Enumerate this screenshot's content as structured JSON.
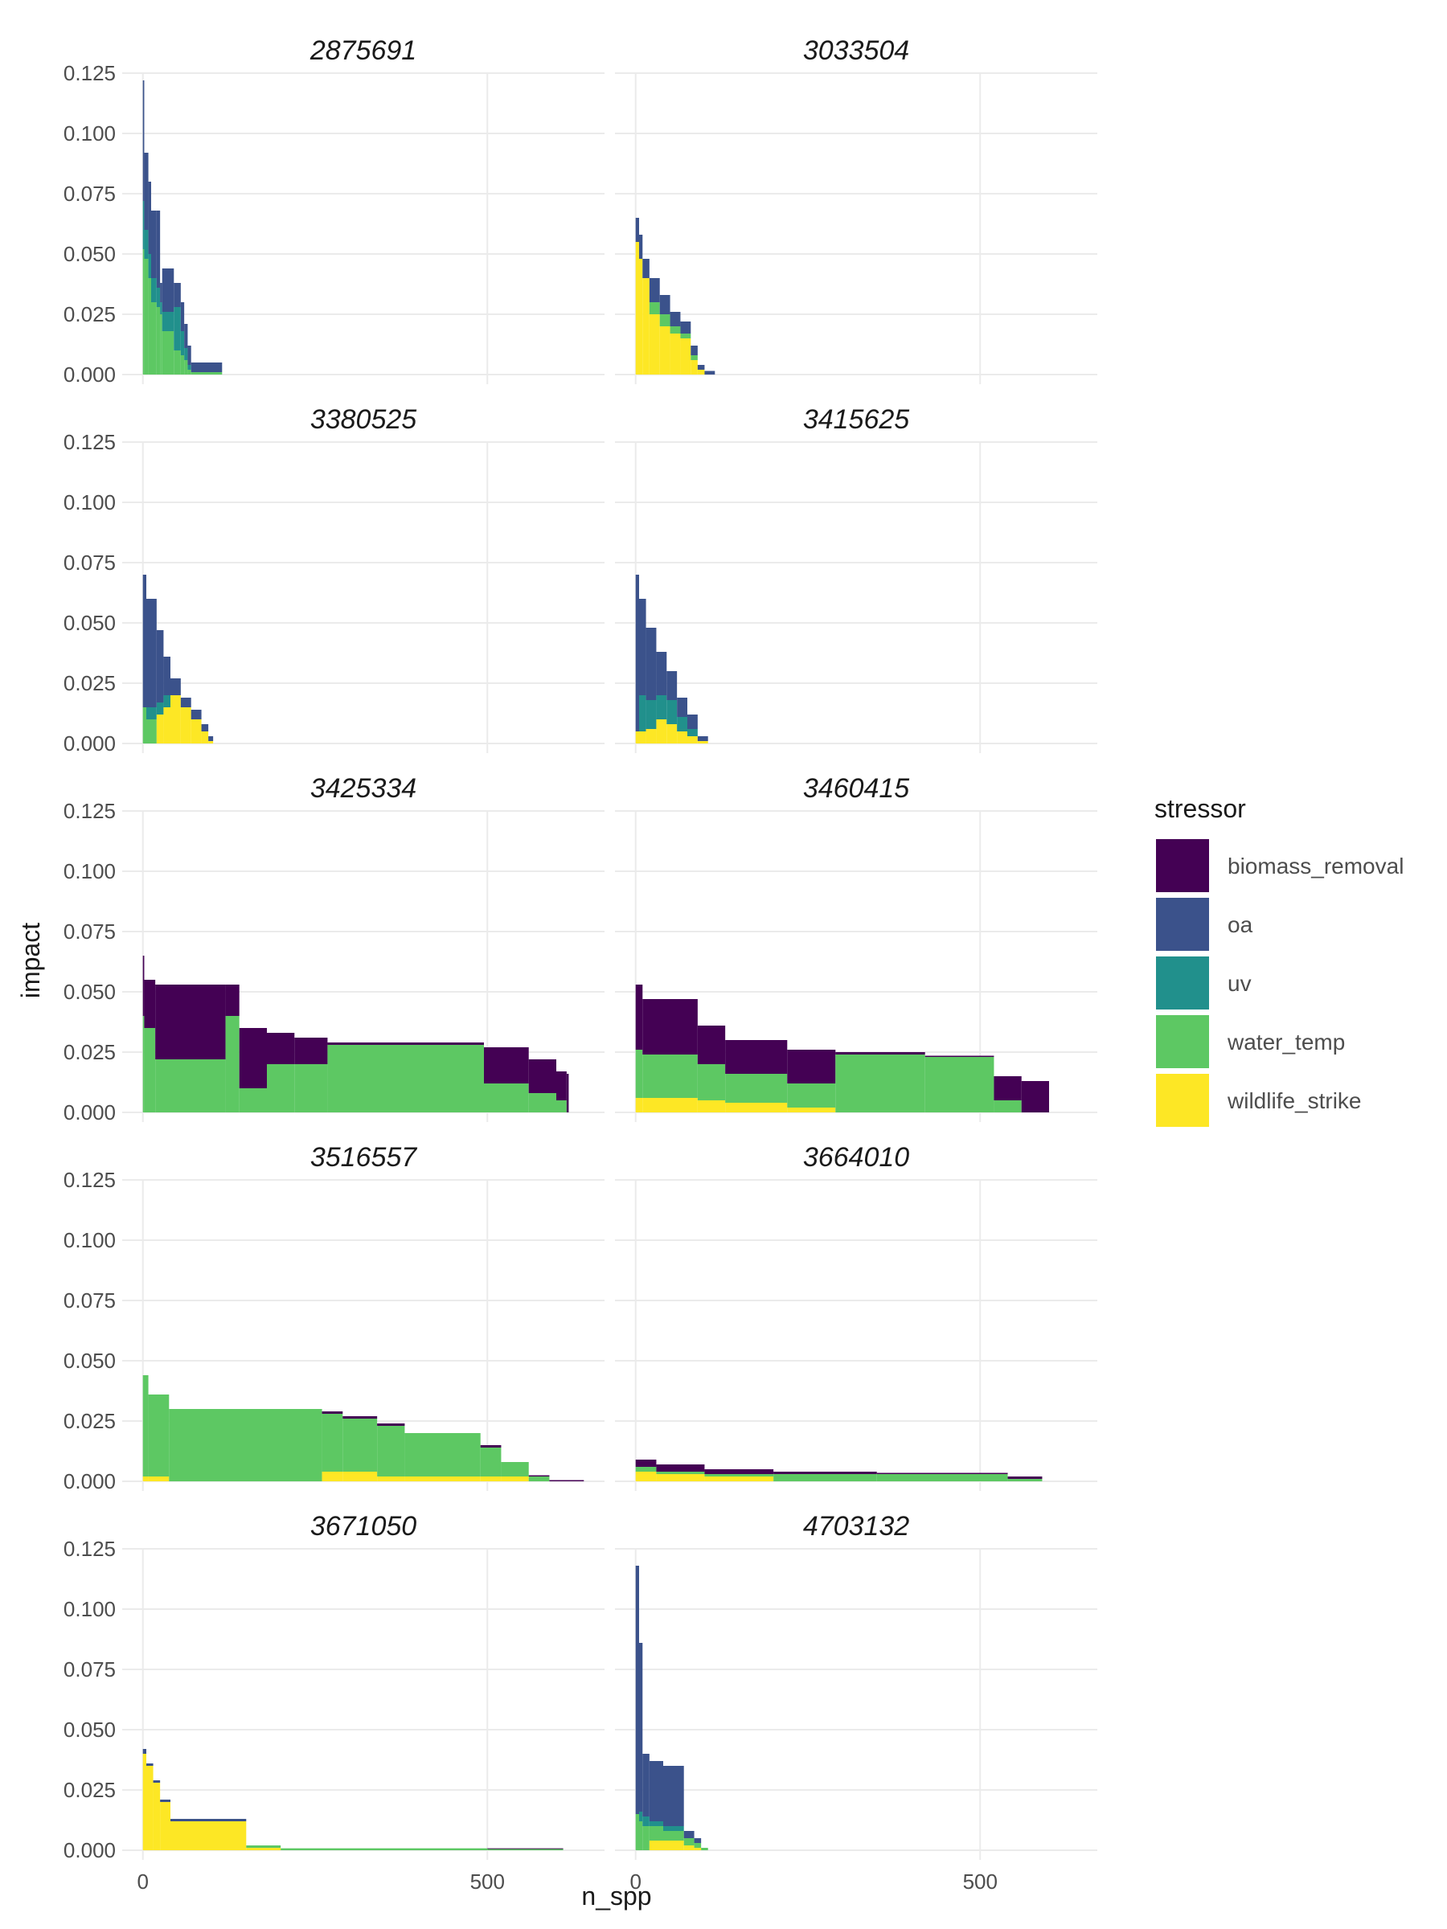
{
  "chart_data": {
    "type": "area",
    "title": "",
    "xlabel": "n_spp",
    "ylabel": "impact",
    "xlim": [
      -30,
      670
    ],
    "ylim": [
      0,
      0.125
    ],
    "x_ticks": [
      0,
      500
    ],
    "x_tick_labels": [
      "0",
      "500"
    ],
    "y_ticks": [
      0,
      0.025,
      0.05,
      0.075,
      0.1,
      0.125
    ],
    "y_tick_labels": [
      "0.000",
      "0.025",
      "0.050",
      "0.075",
      "0.100",
      "0.125"
    ],
    "grid": true,
    "legend": {
      "title": "stressor",
      "placement": "right",
      "entries": [
        "biomass_removal",
        "oa",
        "uv",
        "water_temp",
        "wildlife_strike"
      ]
    },
    "colors": {
      "biomass_removal": "#440154",
      "oa": "#3B528B",
      "uv": "#21908C",
      "water_temp": "#5DC863",
      "wildlife_strike": "#FDE725",
      "grid": "#EBEBEB",
      "axis_text": "#4D4D4D",
      "title_text": "#1A1A1A"
    },
    "panels": [
      {
        "title": "2875691",
        "segments": [
          {
            "x0": 0,
            "x1": 2,
            "layers": {
              "water_temp": 0.052,
              "uv": 0.02,
              "oa": 0.05
            }
          },
          {
            "x0": 2,
            "x1": 8,
            "layers": {
              "water_temp": 0.048,
              "uv": 0.012,
              "oa": 0.032
            }
          },
          {
            "x0": 8,
            "x1": 12,
            "layers": {
              "water_temp": 0.04,
              "uv": 0.01,
              "oa": 0.03
            }
          },
          {
            "x0": 12,
            "x1": 20,
            "layers": {
              "water_temp": 0.03,
              "uv": 0.01,
              "oa": 0.028
            }
          },
          {
            "x0": 20,
            "x1": 25,
            "layers": {
              "water_temp": 0.028,
              "uv": 0.008,
              "oa": 0.032
            }
          },
          {
            "x0": 25,
            "x1": 28,
            "layers": {
              "water_temp": 0.025,
              "uv": 0.005,
              "oa": 0.008
            }
          },
          {
            "x0": 28,
            "x1": 45,
            "layers": {
              "water_temp": 0.018,
              "uv": 0.008,
              "oa": 0.018
            }
          },
          {
            "x0": 45,
            "x1": 55,
            "layers": {
              "water_temp": 0.01,
              "uv": 0.018,
              "oa": 0.01
            }
          },
          {
            "x0": 55,
            "x1": 60,
            "layers": {
              "water_temp": 0.008,
              "uv": 0.01,
              "oa": 0.012
            }
          },
          {
            "x0": 60,
            "x1": 65,
            "layers": {
              "water_temp": 0.006,
              "uv": 0.005,
              "oa": 0.01
            }
          },
          {
            "x0": 65,
            "x1": 70,
            "layers": {
              "water_temp": 0.002,
              "uv": 0.002,
              "oa": 0.008
            }
          },
          {
            "x0": 70,
            "x1": 115,
            "layers": {
              "water_temp": 0.001,
              "oa": 0.004
            }
          }
        ]
      },
      {
        "title": "3033504",
        "segments": [
          {
            "x0": 0,
            "x1": 5,
            "layers": {
              "wildlife_strike": 0.055,
              "oa": 0.01
            }
          },
          {
            "x0": 5,
            "x1": 10,
            "layers": {
              "wildlife_strike": 0.048,
              "oa": 0.01
            }
          },
          {
            "x0": 10,
            "x1": 20,
            "layers": {
              "wildlife_strike": 0.04,
              "oa": 0.008
            }
          },
          {
            "x0": 20,
            "x1": 35,
            "layers": {
              "wildlife_strike": 0.025,
              "water_temp": 0.005,
              "oa": 0.01
            }
          },
          {
            "x0": 35,
            "x1": 50,
            "layers": {
              "wildlife_strike": 0.02,
              "water_temp": 0.005,
              "oa": 0.008
            }
          },
          {
            "x0": 50,
            "x1": 65,
            "layers": {
              "wildlife_strike": 0.017,
              "water_temp": 0.003,
              "oa": 0.006
            }
          },
          {
            "x0": 65,
            "x1": 80,
            "layers": {
              "wildlife_strike": 0.015,
              "water_temp": 0.002,
              "oa": 0.005
            }
          },
          {
            "x0": 80,
            "x1": 90,
            "layers": {
              "wildlife_strike": 0.006,
              "water_temp": 0.002,
              "oa": 0.004
            }
          },
          {
            "x0": 90,
            "x1": 100,
            "layers": {
              "wildlife_strike": 0.002,
              "oa": 0.002
            }
          },
          {
            "x0": 100,
            "x1": 115,
            "layers": {
              "oa": 0.0015
            }
          }
        ]
      },
      {
        "title": "3380525",
        "segments": [
          {
            "x0": 0,
            "x1": 5,
            "layers": {
              "water_temp": 0.015,
              "oa": 0.055
            }
          },
          {
            "x0": 5,
            "x1": 20,
            "layers": {
              "water_temp": 0.01,
              "uv": 0.005,
              "oa": 0.045
            }
          },
          {
            "x0": 20,
            "x1": 30,
            "layers": {
              "wildlife_strike": 0.012,
              "uv": 0.005,
              "oa": 0.03
            }
          },
          {
            "x0": 30,
            "x1": 40,
            "layers": {
              "wildlife_strike": 0.015,
              "uv": 0.005,
              "oa": 0.016
            }
          },
          {
            "x0": 40,
            "x1": 55,
            "layers": {
              "wildlife_strike": 0.02,
              "oa": 0.007
            }
          },
          {
            "x0": 55,
            "x1": 70,
            "layers": {
              "wildlife_strike": 0.015,
              "oa": 0.004
            }
          },
          {
            "x0": 70,
            "x1": 85,
            "layers": {
              "wildlife_strike": 0.01,
              "oa": 0.004
            }
          },
          {
            "x0": 85,
            "x1": 95,
            "layers": {
              "wildlife_strike": 0.005,
              "oa": 0.003
            }
          },
          {
            "x0": 95,
            "x1": 102,
            "layers": {
              "wildlife_strike": 0.001,
              "oa": 0.002
            }
          }
        ]
      },
      {
        "title": "3415625",
        "segments": [
          {
            "x0": 0,
            "x1": 5,
            "layers": {
              "wildlife_strike": 0.005,
              "oa": 0.065
            }
          },
          {
            "x0": 5,
            "x1": 15,
            "layers": {
              "wildlife_strike": 0.005,
              "uv": 0.015,
              "oa": 0.04
            }
          },
          {
            "x0": 15,
            "x1": 30,
            "layers": {
              "wildlife_strike": 0.006,
              "uv": 0.012,
              "oa": 0.03
            }
          },
          {
            "x0": 30,
            "x1": 45,
            "layers": {
              "wildlife_strike": 0.01,
              "uv": 0.01,
              "oa": 0.018
            }
          },
          {
            "x0": 45,
            "x1": 60,
            "layers": {
              "wildlife_strike": 0.008,
              "uv": 0.01,
              "oa": 0.012
            }
          },
          {
            "x0": 60,
            "x1": 75,
            "layers": {
              "wildlife_strike": 0.005,
              "uv": 0.006,
              "oa": 0.008
            }
          },
          {
            "x0": 75,
            "x1": 90,
            "layers": {
              "wildlife_strike": 0.003,
              "uv": 0.003,
              "oa": 0.006
            }
          },
          {
            "x0": 90,
            "x1": 105,
            "layers": {
              "wildlife_strike": 0.001,
              "oa": 0.002
            }
          }
        ]
      },
      {
        "title": "3425334",
        "segments": [
          {
            "x0": 0,
            "x1": 2,
            "layers": {
              "water_temp": 0.04,
              "biomass_removal": 0.025
            }
          },
          {
            "x0": 2,
            "x1": 18,
            "layers": {
              "water_temp": 0.035,
              "biomass_removal": 0.02
            }
          },
          {
            "x0": 18,
            "x1": 120,
            "layers": {
              "water_temp": 0.022,
              "biomass_removal": 0.031
            }
          },
          {
            "x0": 120,
            "x1": 140,
            "layers": {
              "water_temp": 0.04,
              "biomass_removal": 0.013
            }
          },
          {
            "x0": 140,
            "x1": 180,
            "layers": {
              "water_temp": 0.01,
              "biomass_removal": 0.025
            }
          },
          {
            "x0": 180,
            "x1": 220,
            "layers": {
              "water_temp": 0.02,
              "biomass_removal": 0.013
            }
          },
          {
            "x0": 220,
            "x1": 268,
            "layers": {
              "water_temp": 0.02,
              "biomass_removal": 0.011
            }
          },
          {
            "x0": 268,
            "x1": 495,
            "layers": {
              "water_temp": 0.028,
              "biomass_removal": 0.001
            }
          },
          {
            "x0": 495,
            "x1": 560,
            "layers": {
              "water_temp": 0.012,
              "biomass_removal": 0.015
            }
          },
          {
            "x0": 560,
            "x1": 600,
            "layers": {
              "water_temp": 0.008,
              "biomass_removal": 0.014
            }
          },
          {
            "x0": 600,
            "x1": 615,
            "layers": {
              "water_temp": 0.005,
              "biomass_removal": 0.012
            }
          },
          {
            "x0": 615,
            "x1": 618,
            "layers": {
              "biomass_removal": 0.016
            }
          }
        ]
      },
      {
        "title": "3460415",
        "segments": [
          {
            "x0": 0,
            "x1": 10,
            "layers": {
              "wildlife_strike": 0.006,
              "water_temp": 0.02,
              "biomass_removal": 0.027
            }
          },
          {
            "x0": 10,
            "x1": 90,
            "layers": {
              "wildlife_strike": 0.006,
              "water_temp": 0.018,
              "biomass_removal": 0.023
            }
          },
          {
            "x0": 90,
            "x1": 130,
            "layers": {
              "wildlife_strike": 0.005,
              "water_temp": 0.015,
              "biomass_removal": 0.016
            }
          },
          {
            "x0": 130,
            "x1": 220,
            "layers": {
              "wildlife_strike": 0.004,
              "water_temp": 0.012,
              "biomass_removal": 0.014
            }
          },
          {
            "x0": 220,
            "x1": 290,
            "layers": {
              "wildlife_strike": 0.002,
              "water_temp": 0.01,
              "biomass_removal": 0.014
            }
          },
          {
            "x0": 290,
            "x1": 420,
            "layers": {
              "water_temp": 0.024,
              "biomass_removal": 0.001
            }
          },
          {
            "x0": 420,
            "x1": 520,
            "layers": {
              "water_temp": 0.023,
              "biomass_removal": 0.0005
            }
          },
          {
            "x0": 520,
            "x1": 560,
            "layers": {
              "water_temp": 0.005,
              "biomass_removal": 0.01
            }
          },
          {
            "x0": 560,
            "x1": 600,
            "layers": {
              "biomass_removal": 0.013
            }
          }
        ]
      },
      {
        "title": "3516557",
        "segments": [
          {
            "x0": 0,
            "x1": 8,
            "layers": {
              "wildlife_strike": 0.002,
              "water_temp": 0.042
            }
          },
          {
            "x0": 8,
            "x1": 38,
            "layers": {
              "wildlife_strike": 0.002,
              "water_temp": 0.034
            }
          },
          {
            "x0": 38,
            "x1": 260,
            "layers": {
              "water_temp": 0.03
            }
          },
          {
            "x0": 260,
            "x1": 290,
            "layers": {
              "wildlife_strike": 0.004,
              "water_temp": 0.024,
              "biomass_removal": 0.001
            }
          },
          {
            "x0": 290,
            "x1": 340,
            "layers": {
              "wildlife_strike": 0.004,
              "water_temp": 0.022,
              "biomass_removal": 0.001
            }
          },
          {
            "x0": 340,
            "x1": 380,
            "layers": {
              "wildlife_strike": 0.002,
              "water_temp": 0.021,
              "biomass_removal": 0.001
            }
          },
          {
            "x0": 380,
            "x1": 490,
            "layers": {
              "wildlife_strike": 0.002,
              "water_temp": 0.018
            }
          },
          {
            "x0": 490,
            "x1": 520,
            "layers": {
              "wildlife_strike": 0.002,
              "water_temp": 0.012,
              "biomass_removal": 0.001
            }
          },
          {
            "x0": 520,
            "x1": 560,
            "layers": {
              "wildlife_strike": 0.002,
              "water_temp": 0.006
            }
          },
          {
            "x0": 560,
            "x1": 590,
            "layers": {
              "water_temp": 0.002,
              "biomass_removal": 0.0005
            }
          },
          {
            "x0": 590,
            "x1": 640,
            "layers": {
              "biomass_removal": 0.0005
            }
          }
        ]
      },
      {
        "title": "3664010",
        "segments": [
          {
            "x0": 0,
            "x1": 30,
            "layers": {
              "wildlife_strike": 0.004,
              "water_temp": 0.002,
              "biomass_removal": 0.003
            }
          },
          {
            "x0": 30,
            "x1": 100,
            "layers": {
              "wildlife_strike": 0.003,
              "water_temp": 0.001,
              "biomass_removal": 0.003
            }
          },
          {
            "x0": 100,
            "x1": 200,
            "layers": {
              "wildlife_strike": 0.002,
              "water_temp": 0.001,
              "biomass_removal": 0.002
            }
          },
          {
            "x0": 200,
            "x1": 350,
            "layers": {
              "water_temp": 0.003,
              "biomass_removal": 0.001
            }
          },
          {
            "x0": 350,
            "x1": 540,
            "layers": {
              "water_temp": 0.003,
              "biomass_removal": 0.0005
            }
          },
          {
            "x0": 540,
            "x1": 590,
            "layers": {
              "water_temp": 0.001,
              "biomass_removal": 0.001
            }
          }
        ]
      },
      {
        "title": "3671050",
        "segments": [
          {
            "x0": 0,
            "x1": 5,
            "layers": {
              "wildlife_strike": 0.04,
              "oa": 0.002
            }
          },
          {
            "x0": 5,
            "x1": 15,
            "layers": {
              "wildlife_strike": 0.035,
              "oa": 0.001
            }
          },
          {
            "x0": 15,
            "x1": 25,
            "layers": {
              "wildlife_strike": 0.028,
              "oa": 0.001
            }
          },
          {
            "x0": 25,
            "x1": 40,
            "layers": {
              "wildlife_strike": 0.02,
              "oa": 0.001
            }
          },
          {
            "x0": 40,
            "x1": 150,
            "layers": {
              "wildlife_strike": 0.012,
              "oa": 0.001
            }
          },
          {
            "x0": 150,
            "x1": 200,
            "layers": {
              "wildlife_strike": 0.001,
              "water_temp": 0.001
            }
          },
          {
            "x0": 200,
            "x1": 500,
            "layers": {
              "water_temp": 0.0008
            }
          },
          {
            "x0": 500,
            "x1": 610,
            "layers": {
              "water_temp": 0.0005,
              "biomass_removal": 0.0003
            }
          }
        ]
      },
      {
        "title": "4703132",
        "segments": [
          {
            "x0": 0,
            "x1": 5,
            "layers": {
              "water_temp": 0.015,
              "oa": 0.103
            }
          },
          {
            "x0": 5,
            "x1": 10,
            "layers": {
              "water_temp": 0.012,
              "uv": 0.004,
              "oa": 0.07
            }
          },
          {
            "x0": 10,
            "x1": 20,
            "layers": {
              "water_temp": 0.01,
              "uv": 0.004,
              "oa": 0.026
            }
          },
          {
            "x0": 20,
            "x1": 40,
            "layers": {
              "wildlife_strike": 0.004,
              "water_temp": 0.006,
              "uv": 0.002,
              "oa": 0.025
            }
          },
          {
            "x0": 40,
            "x1": 70,
            "layers": {
              "wildlife_strike": 0.004,
              "water_temp": 0.004,
              "uv": 0.002,
              "oa": 0.025
            }
          },
          {
            "x0": 70,
            "x1": 85,
            "layers": {
              "wildlife_strike": 0.002,
              "water_temp": 0.003,
              "oa": 0.003
            }
          },
          {
            "x0": 85,
            "x1": 95,
            "layers": {
              "wildlife_strike": 0.001,
              "water_temp": 0.002,
              "oa": 0.002
            }
          },
          {
            "x0": 95,
            "x1": 105,
            "layers": {
              "water_temp": 0.001
            }
          }
        ]
      }
    ]
  }
}
